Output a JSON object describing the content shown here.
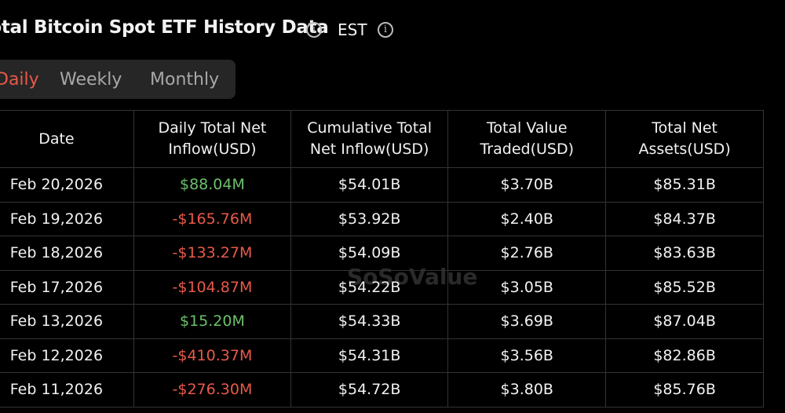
{
  "header": {
    "title": "Total Bitcoin Spot ETF History Data",
    "timezone": "EST"
  },
  "tabs": [
    "Daily",
    "Weekly",
    "Monthly"
  ],
  "watermark": "SoSoValue",
  "table": {
    "columns": [
      [
        "Date"
      ],
      [
        "Daily Total Net",
        "Inflow(USD)"
      ],
      [
        "Cumulative Total",
        "Net Inflow(USD)"
      ],
      [
        "Total Value",
        "Traded(USD)"
      ],
      [
        "Total Net",
        "Assets(USD)"
      ]
    ],
    "rows": [
      [
        "Feb 20,2026",
        "$88.04M",
        "$54.01B",
        "$3.70B",
        "$85.31B"
      ],
      [
        "Feb 19,2026",
        "-$165.76M",
        "$53.92B",
        "$2.40B",
        "$84.37B"
      ],
      [
        "Feb 18,2026",
        "-$133.27M",
        "$54.09B",
        "$2.76B",
        "$83.63B"
      ],
      [
        "Feb 17,2026",
        "-$104.87M",
        "$54.22B",
        "$3.05B",
        "$85.52B"
      ],
      [
        "Feb 13,2026",
        "$15.20M",
        "$54.33B",
        "$3.69B",
        "$87.04B"
      ],
      [
        "Feb 12,2026",
        "-$410.37M",
        "$54.31B",
        "$3.56B",
        "$82.86B"
      ],
      [
        "Feb 11,2026",
        "-$276.30M",
        "$54.72B",
        "$3.80B",
        "$85.76B"
      ]
    ]
  }
}
